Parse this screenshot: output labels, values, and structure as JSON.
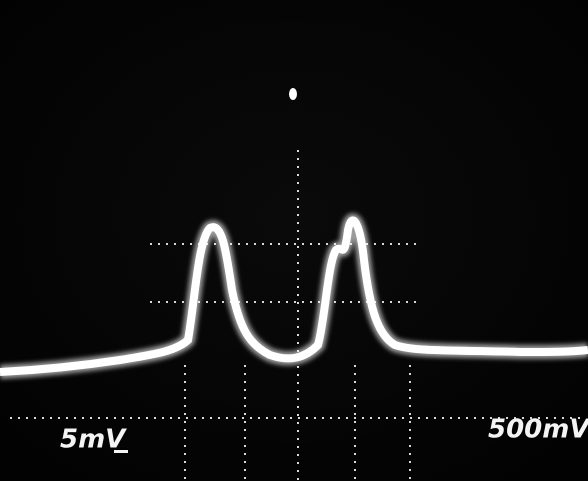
{
  "labels": {
    "left": "5mV",
    "right": "500mV"
  }
}
